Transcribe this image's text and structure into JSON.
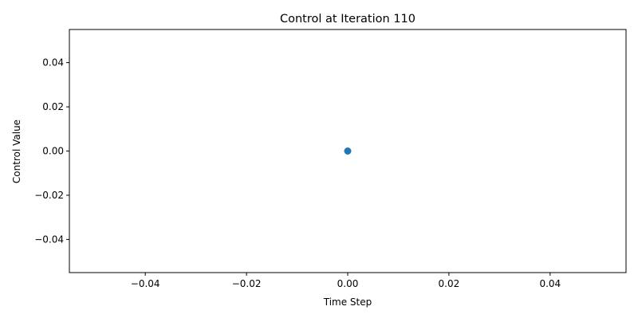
{
  "chart_data": {
    "type": "line",
    "title": "Control at Iteration 110",
    "xlabel": "Time Step",
    "ylabel": "Control Value",
    "xlim": [
      -0.055,
      0.055
    ],
    "ylim": [
      -0.055,
      0.055
    ],
    "xticks": [
      -0.04,
      -0.02,
      0.0,
      0.02,
      0.04
    ],
    "yticks": [
      -0.04,
      -0.02,
      0.0,
      0.02,
      0.04
    ],
    "xtick_labels": [
      "−0.04",
      "−0.02",
      "0.00",
      "0.02",
      "0.04"
    ],
    "ytick_labels": [
      "−0.04",
      "−0.02",
      "0.00",
      "0.02",
      "0.04"
    ],
    "grid": false,
    "legend": false,
    "series": [
      {
        "x": [
          0
        ],
        "y": [
          0
        ],
        "marker": "o",
        "color": "#1f77b4"
      }
    ]
  }
}
